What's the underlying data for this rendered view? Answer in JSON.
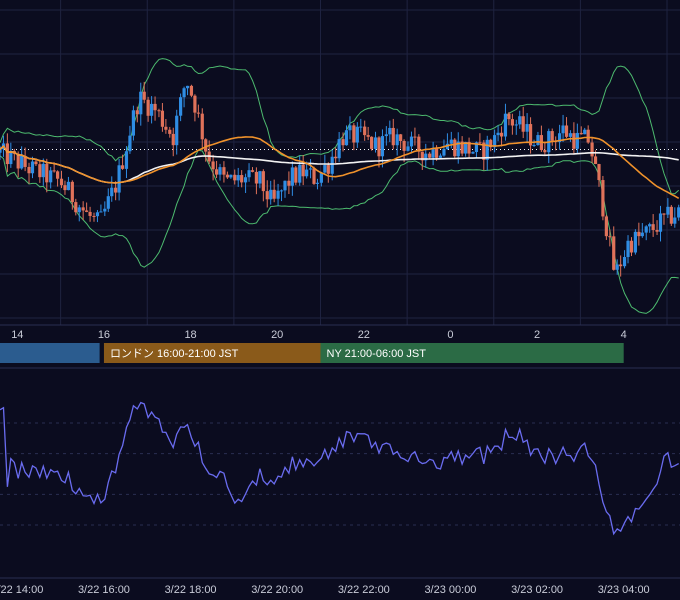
{
  "colors": {
    "background": "#0b0c1f",
    "grid": "#1f2340",
    "candle_up": "#2f8de4",
    "candle_down": "#e0725a",
    "ma_short": "#f0922b",
    "ma_long": "#f2f2f2",
    "bollinger": "#4dbb6f",
    "oscillator": "#6a6cf0",
    "dotted_level": "#ffffff",
    "session_tokyo": "#2b5c8f",
    "session_london": "#8a5a1a",
    "session_ny": "#2b6b45"
  },
  "price_axis": {
    "tick_labels": [
      "14",
      "16",
      "18",
      "20",
      "22",
      "0",
      "2",
      "4"
    ]
  },
  "sessions": [
    {
      "label": "",
      "color": "#2b5c8f",
      "start_hour": 12.5,
      "end_hour": 15.9
    },
    {
      "label": "ロンドン 16:00-21:00 JST",
      "color": "#8a5a1a",
      "start_hour": 16.0,
      "end_hour": 21.0
    },
    {
      "label": "NY 21:00-06:00 JST",
      "color": "#2b6b45",
      "start_hour": 21.0,
      "end_hour": 28.0
    }
  ],
  "time_axis": {
    "tick_labels": [
      "3/22 14:00",
      "3/22 16:00",
      "3/22 18:00",
      "3/22 20:00",
      "3/22 22:00",
      "3/23 00:00",
      "3/23 02:00",
      "3/23 04:00"
    ]
  },
  "chart_data": [
    {
      "type": "candlestick",
      "x_unit": "hours since 3/22 00:00 (JST)",
      "x_range": [
        13.6,
        29.3
      ],
      "ylim": [
        0,
        100
      ],
      "dotted_level": 54,
      "candles": [],
      "series": []
    },
    {
      "type": "line",
      "ylim": [
        0,
        100
      ],
      "grid_levels": [
        25,
        40,
        60,
        75
      ],
      "values": []
    }
  ]
}
